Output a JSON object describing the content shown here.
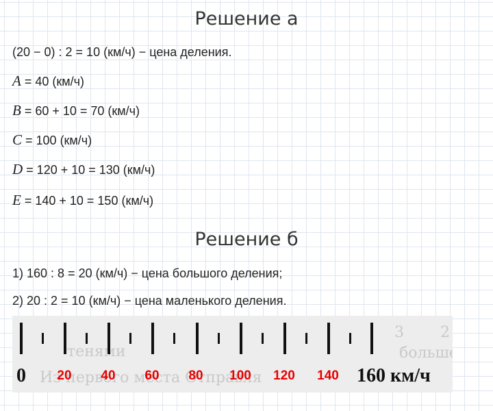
{
  "heading_a": "Решение а",
  "a": {
    "division": "(20 − 0) : 2 = 10 (км/ч) − цена деления.",
    "rows": [
      {
        "var": "A",
        "expr": " = 40 (км/ч)"
      },
      {
        "var": "B",
        "expr": " = 60 + 10 = 70 (км/ч)"
      },
      {
        "var": "C",
        "expr": " = 100 (км/ч)"
      },
      {
        "var": "D",
        "expr": " = 120 + 10 = 130 (км/ч)"
      },
      {
        "var": "E",
        "expr": " = 140 + 10 = 150 (км/ч)"
      }
    ]
  },
  "heading_b": "Решение б",
  "b": {
    "step1": "1) 160 : 8 = 20 (км/ч) − цена большого деления;",
    "step2": "2) 20 : 2 = 10 (км/ч) − цена маленького деления."
  },
  "scale": {
    "start_label": "0",
    "labels": [
      "20",
      "40",
      "60",
      "80",
      "100",
      "120",
      "140"
    ],
    "end_label": "160 км/ч",
    "label_color": "#e60000",
    "faint_text": [
      "тенями",
      "Из первого места Отправля",
      "больше",
      "2",
      "3"
    ]
  }
}
